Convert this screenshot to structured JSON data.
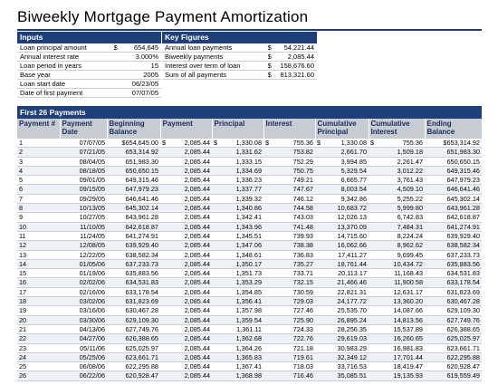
{
  "title": "Biweekly Mortgage Payment Amortization",
  "inputs": {
    "header": "Inputs",
    "rows": [
      {
        "label": "Loan principal amount",
        "currency": "$",
        "value": "654,645"
      },
      {
        "label": "Annual interest rate",
        "currency": "",
        "value": "3.000%"
      },
      {
        "label": "Loan period in years",
        "currency": "",
        "value": "15"
      },
      {
        "label": "Base year",
        "currency": "",
        "value": "2005"
      },
      {
        "label": "Loan start date",
        "currency": "",
        "value": "06/23/05"
      },
      {
        "label": "Date of first payment",
        "currency": "",
        "value": "07/07/05"
      }
    ]
  },
  "key_figures": {
    "header": "Key Figures",
    "rows": [
      {
        "label": "Annual loan payments",
        "currency": "$",
        "value": "54,221.44"
      },
      {
        "label": "Biweekly payments",
        "currency": "$",
        "value": "2,085.44"
      },
      {
        "label": "Interest over term of loan",
        "currency": "$",
        "value": "158,676.60"
      },
      {
        "label": "Sum of all payments",
        "currency": "$",
        "value": "813,321.60"
      }
    ]
  },
  "schedule": {
    "header": "First 26 Payments",
    "columns": [
      "Payment #",
      "Payment Date",
      "Beginning Balance",
      "Payment",
      "Principal",
      "Interest",
      "Cumulative Principal",
      "Cumulative Interest",
      "Ending Balance"
    ],
    "rows": [
      [
        "1",
        "07/07/05",
        "$654,645.00",
        "$",
        "2,085.44",
        "$",
        "1,330.08",
        "$",
        "755.36",
        "$",
        "1,330.08",
        "$",
        "755.36",
        "$653,314.92"
      ],
      [
        "2",
        "07/21/05",
        "653,314.92",
        "",
        "2,085.44",
        "",
        "1,331.62",
        "",
        "753.82",
        "",
        "2,661.70",
        "",
        "1,509.18",
        "651,983.30"
      ],
      [
        "3",
        "08/04/05",
        "651,983.30",
        "",
        "2,085.44",
        "",
        "1,333.15",
        "",
        "752.29",
        "",
        "3,994.85",
        "",
        "2,261.47",
        "650,650.15"
      ],
      [
        "4",
        "08/18/05",
        "650,650.15",
        "",
        "2,085.44",
        "",
        "1,334.69",
        "",
        "750.75",
        "",
        "5,329.54",
        "",
        "3,012.22",
        "649,315.46"
      ],
      [
        "5",
        "09/01/05",
        "649,315.46",
        "",
        "2,085.44",
        "",
        "1,336.23",
        "",
        "749.21",
        "",
        "6,665.77",
        "",
        "3,761.43",
        "647,979.23"
      ],
      [
        "6",
        "09/15/05",
        "647,979.23",
        "",
        "2,085.44",
        "",
        "1,337.77",
        "",
        "747.67",
        "",
        "8,003.54",
        "",
        "4,509.10",
        "646,641.46"
      ],
      [
        "7",
        "09/29/05",
        "646,641.46",
        "",
        "2,085.44",
        "",
        "1,339.32",
        "",
        "746.12",
        "",
        "9,342.86",
        "",
        "5,255.22",
        "645,302.14"
      ],
      [
        "8",
        "10/13/05",
        "645,302.14",
        "",
        "2,085.44",
        "",
        "1,340.86",
        "",
        "744.58",
        "",
        "10,683.72",
        "",
        "5,999.80",
        "643,961.28"
      ],
      [
        "9",
        "10/27/05",
        "643,961.28",
        "",
        "2,085.44",
        "",
        "1,342.41",
        "",
        "743.03",
        "",
        "12,026.13",
        "",
        "6,742.83",
        "642,618.87"
      ],
      [
        "10",
        "11/10/05",
        "642,618.87",
        "",
        "2,085.44",
        "",
        "1,343.96",
        "",
        "741.48",
        "",
        "13,370.09",
        "",
        "7,484.31",
        "641,274.91"
      ],
      [
        "11",
        "11/24/05",
        "641,274.91",
        "",
        "2,085.44",
        "",
        "1,345.51",
        "",
        "739.93",
        "",
        "14,715.60",
        "",
        "8,224.24",
        "639,929.40"
      ],
      [
        "12",
        "12/08/05",
        "639,929.40",
        "",
        "2,085.44",
        "",
        "1,347.06",
        "",
        "738.38",
        "",
        "16,062.66",
        "",
        "8,962.62",
        "638,582.34"
      ],
      [
        "13",
        "12/22/05",
        "638,582.34",
        "",
        "2,085.44",
        "",
        "1,348.61",
        "",
        "736.83",
        "",
        "17,411.27",
        "",
        "9,699.45",
        "637,233.73"
      ],
      [
        "14",
        "01/05/06",
        "637,233.73",
        "",
        "2,085.44",
        "",
        "1,350.17",
        "",
        "735.27",
        "",
        "18,761.44",
        "",
        "10,434.72",
        "635,883.56"
      ],
      [
        "15",
        "01/19/06",
        "635,883.56",
        "",
        "2,085.44",
        "",
        "1,351.73",
        "",
        "733.71",
        "",
        "20,113.17",
        "",
        "11,168.43",
        "634,531.83"
      ],
      [
        "16",
        "02/02/06",
        "634,531.83",
        "",
        "2,085.44",
        "",
        "1,353.29",
        "",
        "732.15",
        "",
        "21,466.46",
        "",
        "11,900.58",
        "633,178.54"
      ],
      [
        "17",
        "02/16/06",
        "633,178.54",
        "",
        "2,085.44",
        "",
        "1,354.85",
        "",
        "730.59",
        "",
        "22,821.31",
        "",
        "12,631.17",
        "631,823.69"
      ],
      [
        "18",
        "03/02/06",
        "631,823.69",
        "",
        "2,085.44",
        "",
        "1,356.41",
        "",
        "729.03",
        "",
        "24,177.72",
        "",
        "13,360.20",
        "630,467.28"
      ],
      [
        "19",
        "03/16/06",
        "630,467.28",
        "",
        "2,085.44",
        "",
        "1,357.98",
        "",
        "727.46",
        "",
        "25,535.70",
        "",
        "14,087.66",
        "629,109.30"
      ],
      [
        "20",
        "03/30/06",
        "629,109.30",
        "",
        "2,085.44",
        "",
        "1,359.54",
        "",
        "725.90",
        "",
        "26,895.24",
        "",
        "14,813.56",
        "627,749.76"
      ],
      [
        "21",
        "04/13/06",
        "627,749.76",
        "",
        "2,085.44",
        "",
        "1,361.11",
        "",
        "724.33",
        "",
        "28,256.35",
        "",
        "15,537.89",
        "626,388.65"
      ],
      [
        "22",
        "04/27/06",
        "626,388.65",
        "",
        "2,085.44",
        "",
        "1,362.68",
        "",
        "722.76",
        "",
        "29,619.03",
        "",
        "16,260.65",
        "625,025.97"
      ],
      [
        "23",
        "05/11/06",
        "625,025.97",
        "",
        "2,085.44",
        "",
        "1,364.26",
        "",
        "721.18",
        "",
        "30,983.29",
        "",
        "16,981.83",
        "623,661.71"
      ],
      [
        "24",
        "05/25/06",
        "623,661.71",
        "",
        "2,085.44",
        "",
        "1,365.83",
        "",
        "719.61",
        "",
        "32,349.12",
        "",
        "17,701.44",
        "622,295.88"
      ],
      [
        "25",
        "06/08/06",
        "622,295.88",
        "",
        "2,085.44",
        "",
        "1,367.41",
        "",
        "718.03",
        "",
        "33,716.53",
        "",
        "18,419.47",
        "620,928.47"
      ],
      [
        "26",
        "06/22/06",
        "620,928.47",
        "",
        "2,085.44",
        "",
        "1,368.98",
        "",
        "716.46",
        "",
        "35,085.51",
        "",
        "19,135.93",
        "619,559.49"
      ]
    ]
  }
}
